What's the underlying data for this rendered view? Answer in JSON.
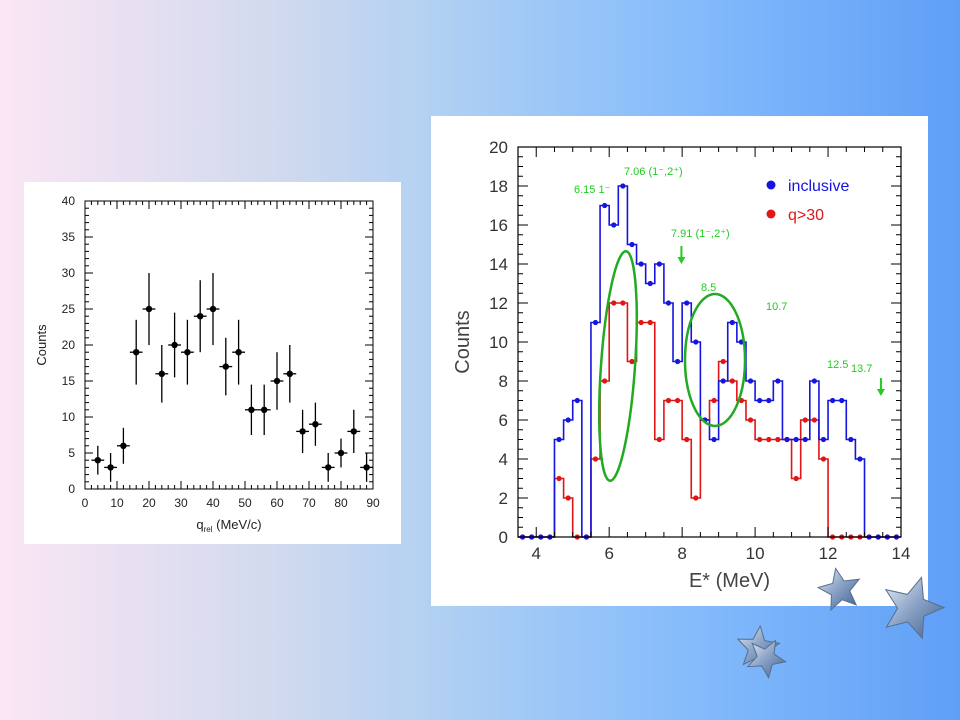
{
  "chart_data": [
    {
      "type": "scatter",
      "title": "",
      "xlabel": "q",
      "xlabel_sub": "rel",
      "xlabel_unit": " (MeV/c)",
      "ylabel": "Counts",
      "xlim": [
        0,
        90
      ],
      "ylim": [
        0,
        40
      ],
      "x_ticks": [
        0,
        10,
        20,
        30,
        40,
        50,
        60,
        70,
        80,
        90
      ],
      "y_ticks": [
        0,
        5,
        10,
        15,
        20,
        25,
        30,
        35,
        40
      ],
      "grid": false,
      "x_err": 2,
      "points": [
        {
          "x": 4,
          "y": 4,
          "err": 2
        },
        {
          "x": 8,
          "y": 3,
          "err": 2
        },
        {
          "x": 12,
          "y": 6,
          "err": 2.5
        },
        {
          "x": 16,
          "y": 19,
          "err": 4.5
        },
        {
          "x": 20,
          "y": 25,
          "err": 5
        },
        {
          "x": 24,
          "y": 16,
          "err": 4
        },
        {
          "x": 28,
          "y": 20,
          "err": 4.5
        },
        {
          "x": 32,
          "y": 19,
          "err": 4.5
        },
        {
          "x": 36,
          "y": 24,
          "err": 5
        },
        {
          "x": 40,
          "y": 25,
          "err": 5
        },
        {
          "x": 44,
          "y": 17,
          "err": 4
        },
        {
          "x": 48,
          "y": 19,
          "err": 4.5
        },
        {
          "x": 52,
          "y": 11,
          "err": 3.5
        },
        {
          "x": 56,
          "y": 11,
          "err": 3.5
        },
        {
          "x": 60,
          "y": 15,
          "err": 4
        },
        {
          "x": 64,
          "y": 16,
          "err": 4
        },
        {
          "x": 68,
          "y": 8,
          "err": 3
        },
        {
          "x": 72,
          "y": 9,
          "err": 3
        },
        {
          "x": 76,
          "y": 3,
          "err": 2
        },
        {
          "x": 80,
          "y": 5,
          "err": 2
        },
        {
          "x": 84,
          "y": 8,
          "err": 3
        },
        {
          "x": 88,
          "y": 3,
          "err": 2
        }
      ]
    },
    {
      "type": "line",
      "step": true,
      "title": "",
      "xlabel": "E* (MeV)",
      "ylabel": "Counts",
      "xlim": [
        3.5,
        14
      ],
      "ylim": [
        0,
        20
      ],
      "x_ticks": [
        4,
        6,
        8,
        10,
        12,
        14
      ],
      "y_ticks": [
        0,
        2,
        4,
        6,
        8,
        10,
        12,
        14,
        16,
        18,
        20
      ],
      "grid": false,
      "legend_position": "top-right",
      "bin_width": 0.25,
      "x": [
        3.625,
        3.875,
        4.125,
        4.375,
        4.625,
        4.875,
        5.125,
        5.375,
        5.625,
        5.875,
        6.125,
        6.375,
        6.625,
        6.875,
        7.125,
        7.375,
        7.625,
        7.875,
        8.125,
        8.375,
        8.625,
        8.875,
        9.125,
        9.375,
        9.625,
        9.875,
        10.125,
        10.375,
        10.625,
        10.875,
        11.125,
        11.375,
        11.625,
        11.875,
        12.125,
        12.375,
        12.625,
        12.875,
        13.125,
        13.375,
        13.625,
        13.875
      ],
      "series": [
        {
          "name": "inclusive",
          "color": "#1515e0",
          "values": [
            0,
            0,
            0,
            0,
            5,
            6,
            7,
            0,
            11,
            17,
            16,
            18,
            15,
            14,
            13,
            14,
            12,
            9,
            12,
            10,
            6,
            5,
            8,
            11,
            10,
            8,
            7,
            7,
            8,
            5,
            5,
            5,
            8,
            5,
            7,
            7,
            5,
            4,
            0,
            0,
            0,
            0
          ]
        },
        {
          "name": "q>30",
          "color": "#e01515",
          "values": [
            0,
            0,
            0,
            0,
            3,
            2,
            0,
            0,
            4,
            8,
            12,
            12,
            9,
            11,
            11,
            5,
            7,
            7,
            5,
            2,
            6,
            7,
            9,
            8,
            7,
            6,
            5,
            5,
            5,
            5,
            3,
            6,
            6,
            4,
            0,
            0,
            0,
            0,
            0,
            0,
            0,
            0
          ]
        }
      ],
      "annotations": [
        {
          "label": "6.15 1⁻",
          "x": 6.15
        },
        {
          "label": "7.06 (1⁻,2⁺)",
          "x": 7.06
        },
        {
          "label": "7.91 (1⁻,2⁺)",
          "x": 7.91,
          "arrow": true
        },
        {
          "label": "8.5",
          "x": 8.5
        },
        {
          "label": "10.7",
          "x": 10.7
        },
        {
          "label": "12.5",
          "x": 12.5
        },
        {
          "label": "13.7",
          "x": 13.7,
          "arrow": true
        }
      ],
      "annotation_color": "#22cc22",
      "ellipse_color": "#22aa22"
    }
  ]
}
